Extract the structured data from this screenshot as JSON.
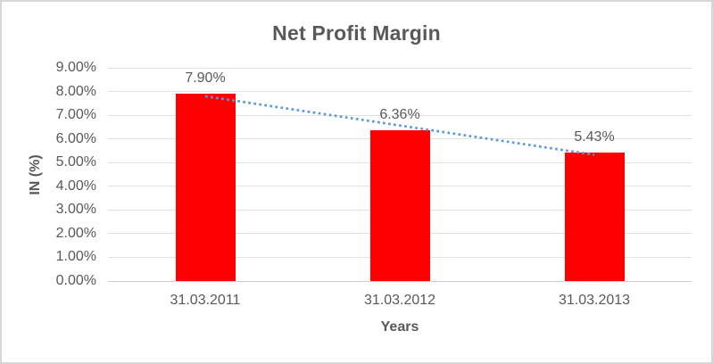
{
  "chart_data": {
    "type": "bar",
    "title": "Net Profit Margin",
    "categories": [
      "31.03.2011",
      "31.03.2012",
      "31.03.2013"
    ],
    "values": [
      7.9,
      6.36,
      5.43
    ],
    "data_labels": [
      "7.90%",
      "6.36%",
      "5.43%"
    ],
    "xlabel": "Years",
    "ylabel": "IN (%)",
    "ylim": [
      0,
      9
    ],
    "ytick_labels": [
      "0.00%",
      "1.00%",
      "2.00%",
      "3.00%",
      "4.00%",
      "5.00%",
      "6.00%",
      "7.00%",
      "8.00%",
      "9.00%"
    ],
    "grid": true,
    "legend": "none",
    "trendline": {
      "type": "linear",
      "style": "dotted",
      "endpoints_pct": [
        7.8,
        5.33
      ]
    }
  },
  "colors": {
    "title_text": "#595959",
    "axis_text": "#595959",
    "gridline": "#e2e2e2",
    "axis_line": "#cfcecd",
    "bar": "#ff0000",
    "trendline": "#5b9bd5",
    "frame_border": "#d7d7d7",
    "background": "#ffffff"
  }
}
